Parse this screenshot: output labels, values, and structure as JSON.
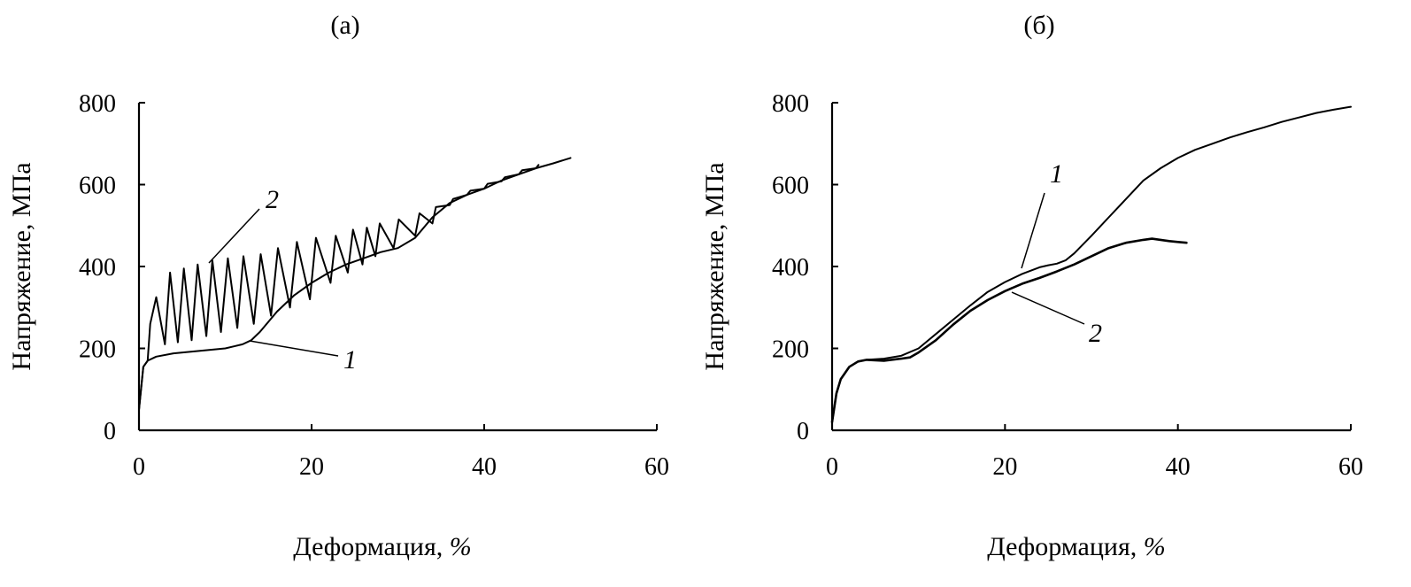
{
  "chart_data": [
    {
      "type": "line",
      "panel_label": "(а)",
      "xlabel": "Деформация,",
      "xlabel_unit": "%",
      "ylabel": "Напряжение, МПа",
      "xlim": [
        0,
        60
      ],
      "ylim": [
        0,
        800
      ],
      "x_ticks": [
        "0",
        "20",
        "40",
        "60"
      ],
      "y_ticks": [
        "0",
        "200",
        "400",
        "600",
        "800"
      ],
      "grid": false,
      "series": [
        {
          "name": "1",
          "x": [
            0,
            0.5,
            1,
            2,
            4,
            6,
            8,
            10,
            11,
            12,
            13,
            14,
            16,
            18,
            20,
            22,
            24,
            26,
            28,
            30,
            32,
            34,
            36,
            38,
            40,
            42,
            44,
            46,
            48,
            50
          ],
          "y": [
            50,
            155,
            170,
            180,
            188,
            192,
            196,
            200,
            205,
            210,
            220,
            240,
            290,
            330,
            360,
            385,
            405,
            420,
            435,
            445,
            470,
            520,
            555,
            575,
            590,
            610,
            625,
            640,
            652,
            665
          ]
        },
        {
          "name": "2",
          "x": [
            0,
            0.5,
            1,
            1.3,
            2,
            3,
            3.6,
            4.5,
            5.2,
            6.1,
            6.8,
            7.8,
            8.5,
            9.5,
            10.3,
            11.4,
            12.1,
            13.3,
            14.1,
            15.3,
            16.1,
            17.5,
            18.3,
            19.8,
            20.5,
            22.2,
            22.8,
            24.2,
            24.8,
            25.9,
            26.4,
            27.4,
            27.9,
            29.5,
            30.1,
            32,
            32.5,
            34,
            34.4,
            36,
            36.4,
            38,
            38.4,
            40,
            40.4,
            42,
            42.4,
            44,
            44.4,
            46,
            46.3
          ],
          "y": [
            50,
            155,
            170,
            260,
            325,
            210,
            385,
            215,
            395,
            220,
            405,
            230,
            415,
            240,
            420,
            250,
            425,
            260,
            430,
            280,
            445,
            300,
            460,
            320,
            470,
            360,
            475,
            385,
            490,
            405,
            495,
            425,
            505,
            445,
            515,
            475,
            530,
            505,
            545,
            550,
            565,
            575,
            585,
            590,
            602,
            608,
            618,
            625,
            635,
            640,
            648
          ]
        }
      ],
      "annotations": [
        "1",
        "2"
      ]
    },
    {
      "type": "line",
      "panel_label": "(б)",
      "xlabel": "Деформация,",
      "xlabel_unit": "%",
      "ylabel": "Напряжение, МПа",
      "xlim": [
        0,
        60
      ],
      "ylim": [
        0,
        800
      ],
      "x_ticks": [
        "0",
        "20",
        "40",
        "60"
      ],
      "y_ticks": [
        "0",
        "200",
        "400",
        "600",
        "800"
      ],
      "grid": false,
      "series": [
        {
          "name": "1",
          "x": [
            0,
            0.5,
            1,
            2,
            3,
            4,
            6,
            8,
            10,
            12,
            14,
            16,
            18,
            20,
            22,
            24,
            25,
            26,
            27,
            28,
            30,
            32,
            34,
            36,
            38,
            40,
            42,
            44,
            46,
            48,
            50,
            52,
            54,
            56,
            58,
            60
          ],
          "y": [
            20,
            90,
            125,
            155,
            168,
            172,
            175,
            182,
            200,
            235,
            270,
            305,
            338,
            362,
            382,
            398,
            403,
            407,
            415,
            432,
            475,
            520,
            565,
            610,
            640,
            665,
            685,
            700,
            715,
            728,
            740,
            753,
            764,
            775,
            783,
            790
          ]
        },
        {
          "name": "2",
          "x": [
            0,
            0.5,
            1,
            2,
            3,
            4,
            6,
            8,
            9,
            10,
            12,
            14,
            16,
            18,
            20,
            22,
            24,
            26,
            28,
            30,
            32,
            34,
            36,
            37,
            38,
            39,
            40,
            41
          ],
          "y": [
            20,
            90,
            125,
            155,
            168,
            172,
            170,
            175,
            178,
            190,
            220,
            258,
            292,
            318,
            340,
            358,
            372,
            388,
            405,
            425,
            445,
            458,
            465,
            468,
            465,
            462,
            460,
            458
          ]
        }
      ],
      "annotations": [
        "1",
        "2"
      ]
    }
  ]
}
